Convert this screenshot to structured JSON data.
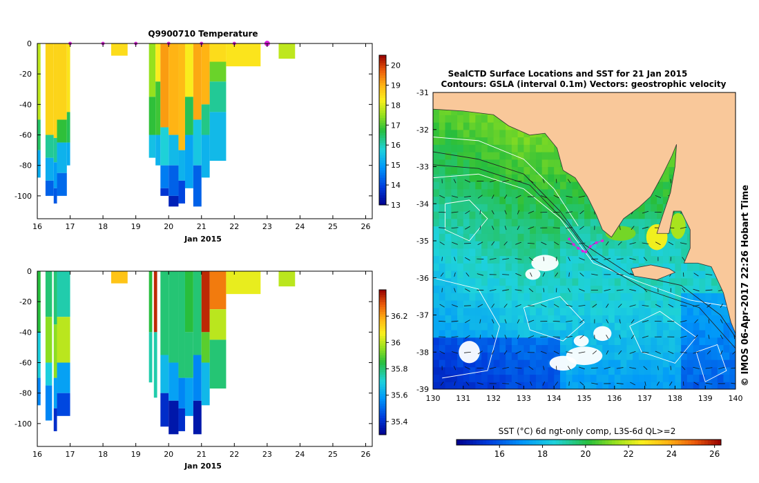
{
  "colors": {
    "land": "#f9c89a",
    "axis": "#000000",
    "track": "#dd22dd",
    "contour_white": "#ffffff",
    "contour_dark": "#222222"
  },
  "chart_data": [
    {
      "id": "temp",
      "type": "heatmap",
      "title": "Q9900710  Temperature",
      "xlabel": "Jan 2015",
      "ylabel": "",
      "xlim": [
        16,
        26.2
      ],
      "ylim": [
        -115,
        0
      ],
      "x_ticks": [
        "16",
        "17",
        "18",
        "19",
        "20",
        "21",
        "22",
        "23",
        "24",
        "25",
        "26"
      ],
      "y_ticks": [
        "0",
        "-20",
        "-40",
        "-60",
        "-80",
        "-100"
      ],
      "colorbar": {
        "min": 13,
        "max": 20.5,
        "ticks": [
          "20",
          "19",
          "18",
          "17",
          "16",
          "15",
          "14",
          "13"
        ]
      },
      "profile_markers_x": [
        17,
        18,
        19,
        20,
        21,
        22,
        23
      ],
      "profiles": [
        {
          "x0": 16.0,
          "x1": 16.1,
          "depth": -88,
          "layers": [
            [
              0,
              -50,
              17.8
            ],
            [
              -50,
              -70,
              16.5
            ],
            [
              -70,
              -88,
              15.2
            ]
          ]
        },
        {
          "x0": 16.25,
          "x1": 16.5,
          "depth": -100,
          "layers": [
            [
              0,
              -60,
              18.6
            ],
            [
              -60,
              -75,
              16.2
            ],
            [
              -75,
              -90,
              15.2
            ],
            [
              -90,
              -100,
              14.3
            ]
          ]
        },
        {
          "x0": 16.5,
          "x1": 16.6,
          "depth": -105,
          "layers": [
            [
              0,
              -62,
              18.6
            ],
            [
              -62,
              -78,
              16.2
            ],
            [
              -78,
              -95,
              15.0
            ],
            [
              -95,
              -105,
              14.2
            ]
          ]
        },
        {
          "x0": 16.6,
          "x1": 16.9,
          "depth": -100,
          "layers": [
            [
              0,
              -50,
              18.6
            ],
            [
              -50,
              -65,
              16.8
            ],
            [
              -65,
              -85,
              15.3
            ],
            [
              -85,
              -100,
              14.4
            ]
          ]
        },
        {
          "x0": 16.9,
          "x1": 17.0,
          "depth": -80,
          "layers": [
            [
              0,
              -45,
              18.4
            ],
            [
              -45,
              -65,
              16.6
            ],
            [
              -65,
              -80,
              15.2
            ]
          ]
        },
        {
          "x0": 18.25,
          "x1": 18.75,
          "depth": -8,
          "layers": [
            [
              0,
              -8,
              18.5
            ]
          ]
        },
        {
          "x0": 19.4,
          "x1": 19.6,
          "depth": -75,
          "layers": [
            [
              0,
              -35,
              17.5
            ],
            [
              -35,
              -60,
              16.8
            ],
            [
              -60,
              -75,
              15.5
            ]
          ]
        },
        {
          "x0": 19.6,
          "x1": 19.75,
          "depth": -80,
          "layers": [
            [
              0,
              -25,
              18.3
            ],
            [
              -25,
              -60,
              16.9
            ],
            [
              -60,
              -80,
              15.3
            ]
          ]
        },
        {
          "x0": 19.75,
          "x1": 20.0,
          "depth": -100,
          "layers": [
            [
              0,
              -55,
              19.2
            ],
            [
              -55,
              -80,
              15.8
            ],
            [
              -80,
              -95,
              14.6
            ],
            [
              -95,
              -100,
              13.8
            ]
          ]
        },
        {
          "x0": 20.0,
          "x1": 20.3,
          "depth": -107,
          "layers": [
            [
              0,
              -60,
              19.0
            ],
            [
              -60,
              -80,
              15.4
            ],
            [
              -80,
              -100,
              14.3
            ],
            [
              -100,
              -107,
              13.5
            ]
          ]
        },
        {
          "x0": 20.3,
          "x1": 20.5,
          "depth": -105,
          "layers": [
            [
              0,
              -70,
              18.9
            ],
            [
              -70,
              -90,
              15.3
            ],
            [
              -90,
              -105,
              14.0
            ]
          ]
        },
        {
          "x0": 20.5,
          "x1": 20.75,
          "depth": -95,
          "layers": [
            [
              0,
              -35,
              18.3
            ],
            [
              -35,
              -60,
              16.6
            ],
            [
              -60,
              -95,
              15.1
            ]
          ]
        },
        {
          "x0": 20.75,
          "x1": 21.0,
          "depth": -107,
          "layers": [
            [
              0,
              -50,
              19.1
            ],
            [
              -50,
              -80,
              15.6
            ],
            [
              -80,
              -107,
              14.3
            ]
          ]
        },
        {
          "x0": 21.0,
          "x1": 21.25,
          "depth": -88,
          "layers": [
            [
              0,
              -40,
              19.0
            ],
            [
              -40,
              -60,
              16.3
            ],
            [
              -60,
              -88,
              15.3
            ]
          ]
        },
        {
          "x0": 21.25,
          "x1": 21.75,
          "depth": -77,
          "layers": [
            [
              0,
              -12,
              18.5
            ],
            [
              -12,
              -25,
              17.2
            ],
            [
              -25,
              -45,
              16.2
            ],
            [
              -45,
              -77,
              15.4
            ]
          ]
        },
        {
          "x0": 21.75,
          "x1": 22.8,
          "depth": -15,
          "layers": [
            [
              0,
              -15,
              18.4
            ]
          ]
        },
        {
          "x0": 23.35,
          "x1": 23.85,
          "depth": -10,
          "layers": [
            [
              0,
              -10,
              17.8
            ]
          ]
        }
      ]
    },
    {
      "id": "psal",
      "type": "heatmap",
      "title": "",
      "xlabel": "Jan 2015",
      "ylabel": "",
      "xlim": [
        16,
        26.2
      ],
      "ylim": [
        -115,
        0
      ],
      "x_ticks": [
        "16",
        "17",
        "18",
        "19",
        "20",
        "21",
        "22",
        "23",
        "24",
        "25",
        "26"
      ],
      "y_ticks": [
        "0",
        "-20",
        "-40",
        "-60",
        "-80",
        "-100"
      ],
      "colorbar": {
        "min": 35.3,
        "max": 36.4,
        "ticks": [
          "36.2",
          "36",
          "35.8",
          "35.6",
          "35.4"
        ]
      },
      "profiles": [
        {
          "x0": 16.0,
          "x1": 16.1,
          "depth": -88,
          "layers": [
            [
              0,
              -40,
              35.85
            ],
            [
              -40,
              -70,
              35.7
            ],
            [
              -70,
              -88,
              35.55
            ]
          ]
        },
        {
          "x0": 16.25,
          "x1": 16.45,
          "depth": -98,
          "layers": [
            [
              0,
              -30,
              35.8
            ],
            [
              -30,
              -60,
              35.95
            ],
            [
              -60,
              -75,
              35.7
            ],
            [
              -75,
              -98,
              35.55
            ]
          ]
        },
        {
          "x0": 16.5,
          "x1": 16.6,
          "depth": -105,
          "layers": [
            [
              0,
              -35,
              35.8
            ],
            [
              -35,
              -70,
              35.95
            ],
            [
              -70,
              -90,
              35.6
            ],
            [
              -90,
              -105,
              35.4
            ]
          ]
        },
        {
          "x0": 16.6,
          "x1": 17.0,
          "depth": -95,
          "layers": [
            [
              0,
              -30,
              35.75
            ],
            [
              -30,
              -60,
              36.0
            ],
            [
              -60,
              -80,
              35.6
            ],
            [
              -80,
              -95,
              35.45
            ]
          ]
        },
        {
          "x0": 18.25,
          "x1": 18.75,
          "depth": -8,
          "layers": [
            [
              0,
              -8,
              36.15
            ]
          ]
        },
        {
          "x0": 19.4,
          "x1": 19.5,
          "depth": -73,
          "layers": [
            [
              0,
              -40,
              35.85
            ],
            [
              -40,
              -73,
              35.75
            ]
          ]
        },
        {
          "x0": 19.55,
          "x1": 19.65,
          "depth": -83,
          "layers": [
            [
              0,
              -40,
              36.35
            ],
            [
              -40,
              -83,
              35.75
            ]
          ]
        },
        {
          "x0": 19.75,
          "x1": 20.0,
          "depth": -102,
          "layers": [
            [
              0,
              -55,
              35.8
            ],
            [
              -55,
              -80,
              35.65
            ],
            [
              -80,
              -102,
              35.4
            ]
          ]
        },
        {
          "x0": 20.0,
          "x1": 20.3,
          "depth": -107,
          "layers": [
            [
              0,
              -60,
              35.8
            ],
            [
              -60,
              -85,
              35.6
            ],
            [
              -85,
              -107,
              35.35
            ]
          ]
        },
        {
          "x0": 20.3,
          "x1": 20.5,
          "depth": -105,
          "layers": [
            [
              0,
              -70,
              35.8
            ],
            [
              -70,
              -90,
              35.55
            ],
            [
              -90,
              -105,
              35.4
            ]
          ]
        },
        {
          "x0": 20.5,
          "x1": 20.75,
          "depth": -95,
          "layers": [
            [
              0,
              -40,
              35.85
            ],
            [
              -40,
              -70,
              35.8
            ],
            [
              -70,
              -95,
              35.6
            ]
          ]
        },
        {
          "x0": 20.75,
          "x1": 21.0,
          "depth": -107,
          "layers": [
            [
              0,
              -55,
              35.8
            ],
            [
              -55,
              -85,
              35.55
            ],
            [
              -85,
              -107,
              35.35
            ]
          ]
        },
        {
          "x0": 21.0,
          "x1": 21.25,
          "depth": -88,
          "layers": [
            [
              0,
              -40,
              36.35
            ],
            [
              -40,
              -60,
              35.9
            ],
            [
              -60,
              -88,
              35.65
            ]
          ]
        },
        {
          "x0": 21.25,
          "x1": 21.75,
          "depth": -77,
          "layers": [
            [
              0,
              -25,
              36.25
            ],
            [
              -25,
              -45,
              36.0
            ],
            [
              -45,
              -77,
              35.8
            ]
          ]
        },
        {
          "x0": 21.75,
          "x1": 22.8,
          "depth": -15,
          "layers": [
            [
              0,
              -15,
              36.05
            ]
          ]
        },
        {
          "x0": 23.35,
          "x1": 23.85,
          "depth": -10,
          "layers": [
            [
              0,
              -10,
              36.0
            ]
          ]
        }
      ]
    },
    {
      "id": "sst_map",
      "type": "heatmap",
      "title": "SealCTD Surface Locations and SST for 21 Jan 2015",
      "subtitle": "Contours: GSLA (interval 0.1m) Vectors: geostrophic velocity",
      "xlabel": "",
      "ylabel": "",
      "xlim": [
        130,
        140
      ],
      "ylim": [
        -39,
        -31
      ],
      "x_ticks": [
        "130",
        "131",
        "132",
        "133",
        "134",
        "135",
        "136",
        "137",
        "138",
        "139",
        "140"
      ],
      "y_ticks": [
        "-31",
        "-32",
        "-33",
        "-34",
        "-35",
        "-36",
        "-37",
        "-38",
        "-39"
      ],
      "side_label": "© IMOS 06-Apr-2017 22:26 Hobart Time",
      "colorbar": {
        "label": "SST (°C) 6d ngt-only comp, L3S-6d QL>=2",
        "min": 14,
        "max": 26.3,
        "ticks": [
          "16",
          "18",
          "20",
          "22",
          "24",
          "26"
        ]
      },
      "coastline": [
        [
          130,
          -31.45
        ],
        [
          131,
          -31.5
        ],
        [
          132,
          -31.6
        ],
        [
          132.5,
          -31.9
        ],
        [
          133.2,
          -32.15
        ],
        [
          133.7,
          -32.1
        ],
        [
          134.1,
          -32.5
        ],
        [
          134.3,
          -33.1
        ],
        [
          134.7,
          -33.3
        ],
        [
          135.1,
          -33.8
        ],
        [
          135.4,
          -34.3
        ],
        [
          135.6,
          -34.7
        ],
        [
          135.9,
          -34.9
        ],
        [
          136.3,
          -34.4
        ],
        [
          136.8,
          -34.1
        ],
        [
          137.2,
          -33.8
        ],
        [
          137.6,
          -33.2
        ],
        [
          137.9,
          -32.7
        ],
        [
          138.05,
          -32.4
        ],
        [
          138.0,
          -33.0
        ],
        [
          137.85,
          -33.7
        ],
        [
          137.6,
          -34.3
        ],
        [
          137.4,
          -34.8
        ],
        [
          137.8,
          -34.8
        ],
        [
          137.95,
          -34.2
        ],
        [
          138.2,
          -34.2
        ],
        [
          138.5,
          -34.7
        ],
        [
          138.5,
          -35.2
        ],
        [
          138.3,
          -35.6
        ],
        [
          138.75,
          -35.6
        ],
        [
          139.2,
          -35.7
        ],
        [
          139.6,
          -36.4
        ],
        [
          139.85,
          -37.2
        ],
        [
          140,
          -37.5
        ]
      ],
      "island": [
        [
          136.55,
          -35.75
        ],
        [
          137.2,
          -35.65
        ],
        [
          137.8,
          -35.75
        ],
        [
          138.0,
          -35.85
        ],
        [
          137.4,
          -36.05
        ],
        [
          136.65,
          -35.95
        ]
      ],
      "track_x": [
        134.5,
        134.65,
        134.8,
        134.95,
        135.05,
        135.2,
        135.4,
        135.6
      ],
      "track_y": [
        -34.95,
        -35.1,
        -35.2,
        -35.28,
        -35.3,
        -35.15,
        -35.05,
        -35.0
      ]
    }
  ]
}
